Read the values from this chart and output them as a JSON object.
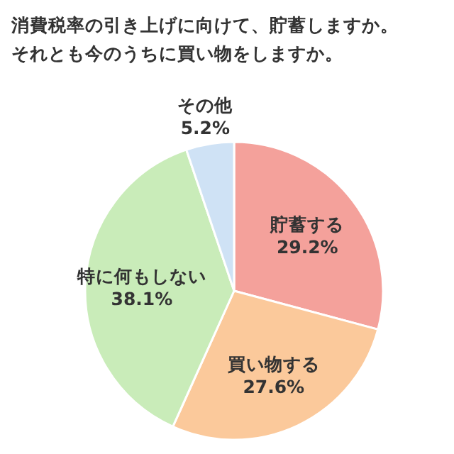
{
  "chart_data": {
    "type": "pie",
    "title": "消費税率の引き上げに向けて、貯蓄しますか。",
    "subtitle": "それとも今のうちに買い物をしますか。",
    "categories": [
      "貯蓄する",
      "買い物する",
      "特に何もしない",
      "その他"
    ],
    "values": [
      29.2,
      27.6,
      38.1,
      5.2
    ],
    "colors": [
      "#f4a19b",
      "#fbc99b",
      "#c9ecb9",
      "#cfe2f5"
    ],
    "value_labels": [
      "29.2%",
      "27.6%",
      "38.1%",
      "5.2%"
    ],
    "legend": false
  }
}
